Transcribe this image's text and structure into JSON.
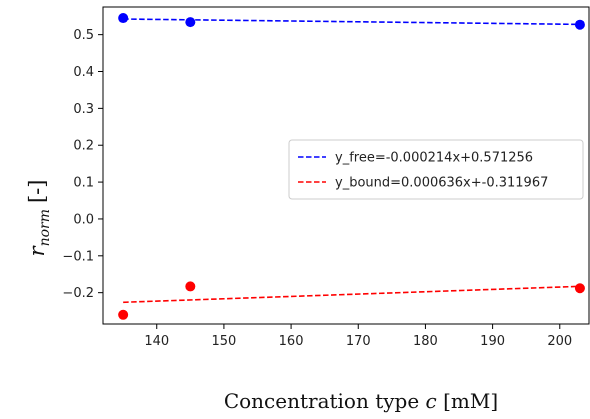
{
  "chart_data": {
    "type": "scatter",
    "title": "",
    "xlabel": {
      "text": "Concentration type",
      "var": "c",
      "unit": "[mM]"
    },
    "ylabel": {
      "var": "r",
      "sub": "norm",
      "unit": "[-]"
    },
    "xlim": [
      132,
      204.5
    ],
    "ylim": [
      -0.285,
      0.575
    ],
    "xticks": [
      140,
      150,
      160,
      170,
      180,
      190,
      200
    ],
    "yticks": [
      0.5,
      0.4,
      0.3,
      0.2,
      0.1,
      0.0,
      -0.1,
      -0.2
    ],
    "ytick_labels": [
      "0.5",
      "0.4",
      "0.3",
      "0.2",
      "0.1",
      "0.0",
      "−0.1",
      "−0.2"
    ],
    "grid": false,
    "legend_position": "center-right",
    "series": [
      {
        "key": "free",
        "color": "#0000ff",
        "points": {
          "x": [
            135,
            145,
            203
          ],
          "y": [
            0.545,
            0.534,
            0.527
          ]
        },
        "fit": {
          "label": "y_free=-0.000214x+0.571256",
          "slope": -0.000214,
          "intercept": 0.571256,
          "x_range": [
            135,
            203
          ]
        }
      },
      {
        "key": "bound",
        "color": "#ff0000",
        "points": {
          "x": [
            135,
            145,
            203
          ],
          "y": [
            -0.26,
            -0.183,
            -0.188
          ]
        },
        "fit": {
          "label": "y_bound=0.000636x+-0.311967",
          "slope": 0.000636,
          "intercept": -0.311967,
          "x_range": [
            135,
            203
          ]
        }
      }
    ]
  }
}
